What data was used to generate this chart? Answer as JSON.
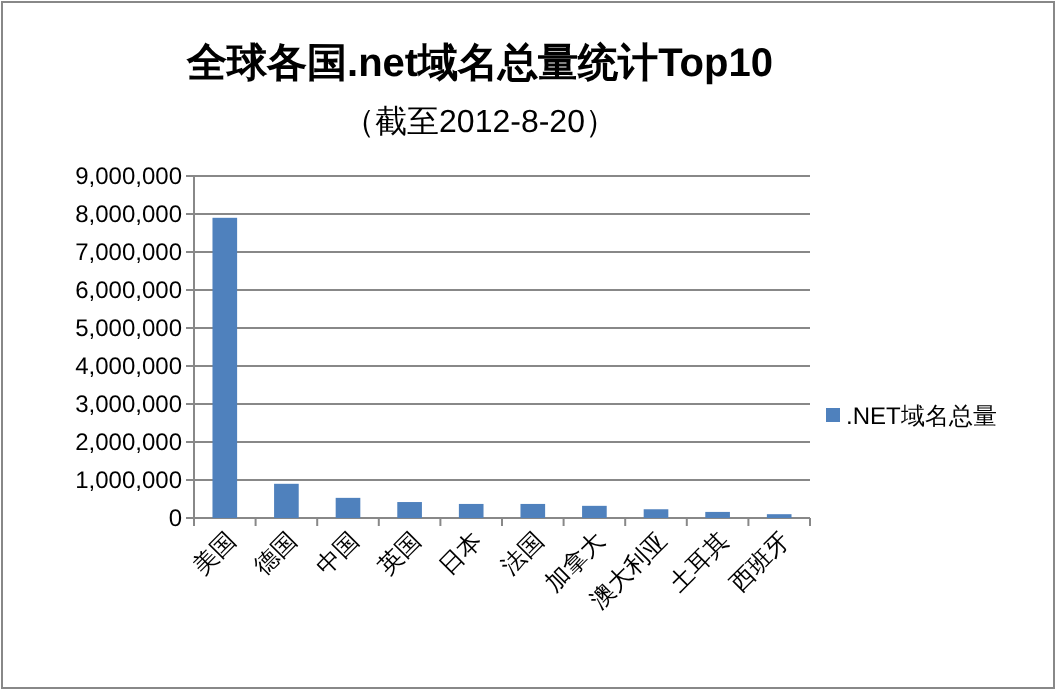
{
  "chart_data": {
    "type": "bar",
    "title": "全球各国.net域名总量统计Top10",
    "subtitle": "（截至2012-8-20）",
    "categories": [
      "美国",
      "德国",
      "中国",
      "英国",
      "日本",
      "法国",
      "加拿大",
      "澳大利亚",
      "土耳其",
      "西班牙"
    ],
    "series": [
      {
        "name": ".NET域名总量",
        "color": "#4f81bd",
        "values": [
          7900000,
          900000,
          530000,
          420000,
          370000,
          370000,
          320000,
          230000,
          160000,
          100000
        ]
      }
    ],
    "ylim": [
      0,
      9000000
    ],
    "yticks": [
      {
        "value": 0,
        "label": "0"
      },
      {
        "value": 1000000,
        "label": "1,000,000"
      },
      {
        "value": 2000000,
        "label": "2,000,000"
      },
      {
        "value": 3000000,
        "label": "3,000,000"
      },
      {
        "value": 4000000,
        "label": "4,000,000"
      },
      {
        "value": 5000000,
        "label": "5,000,000"
      },
      {
        "value": 6000000,
        "label": "6,000,000"
      },
      {
        "value": 7000000,
        "label": "7,000,000"
      },
      {
        "value": 8000000,
        "label": "8,000,000"
      },
      {
        "value": 9000000,
        "label": "9,000,000"
      }
    ],
    "grid": "y",
    "legend": "right"
  }
}
